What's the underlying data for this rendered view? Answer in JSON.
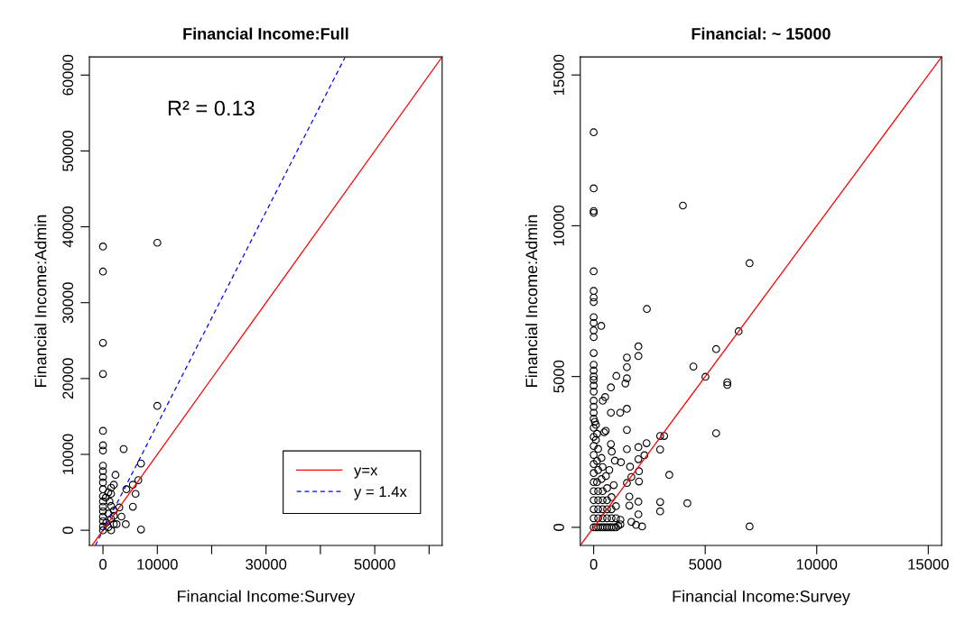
{
  "chart_data": [
    {
      "type": "scatter",
      "title": "Financial Income:Full",
      "xlabel": "Financial Income:Survey",
      "ylabel": "Financial Income:Admin",
      "annotations": [
        "R² = 0.13"
      ],
      "xlim": [
        -2500,
        62400
      ],
      "ylim": [
        -2000,
        62400
      ],
      "xticks": [
        0,
        10000,
        {
          "value": 20000,
          "label": null
        },
        30000,
        {
          "value": 40000,
          "label": null
        },
        50000,
        {
          "value": 60000,
          "label": null
        }
      ],
      "yticks": [
        0,
        10000,
        20000,
        30000,
        40000,
        50000,
        60000
      ],
      "grid": false,
      "legend": "bottom right",
      "series": [
        {
          "type": "scatter",
          "color": "#000000",
          "marker": "circle",
          "x": [
            0,
            10000,
            0,
            0,
            0,
            10000,
            0,
            0,
            0,
            3800,
            0,
            7000,
            0,
            0,
            2300,
            0,
            6500,
            5500,
            4300,
            6000,
            5500,
            3000,
            3400,
            4200,
            7000,
            2000,
            1500,
            1000,
            0,
            1500,
            0,
            500,
            0,
            1200,
            0,
            1500,
            2000,
            0,
            1000,
            0,
            2000,
            1500,
            0,
            600,
            2000,
            0,
            1000,
            0,
            1500,
            2500
          ],
          "values": [
            37400,
            37900,
            34100,
            24700,
            20600,
            16400,
            13100,
            11200,
            10500,
            10700,
            8500,
            8800,
            7800,
            7000,
            7300,
            6300,
            6600,
            6000,
            5400,
            4800,
            3100,
            3000,
            1800,
            800,
            100,
            6000,
            5600,
            5000,
            5400,
            4800,
            4500,
            4300,
            3800,
            3800,
            3100,
            3200,
            2600,
            2500,
            2200,
            1800,
            1900,
            1500,
            1200,
            1000,
            800,
            500,
            400,
            0,
            0,
            800
          ]
        },
        {
          "type": "line",
          "name": "y=x",
          "color": "#ff0000",
          "line_style": "solid",
          "x": [
            -2000,
            62400
          ],
          "values": [
            -2000,
            62400
          ]
        },
        {
          "type": "line",
          "name": "y = 1.4x",
          "color": "#0000ff",
          "line_style": "dashed",
          "x": [
            -1400,
            44500
          ],
          "values": [
            -2000,
            62300
          ]
        }
      ]
    },
    {
      "type": "scatter",
      "title": "Financial: ~ 15000",
      "xlabel": "Financial Income:Survey",
      "ylabel": "Financial Income:Admin",
      "xlim": [
        -600,
        15600
      ],
      "ylim": [
        -600,
        15600
      ],
      "xticks": [
        0,
        5000,
        10000,
        15000
      ],
      "yticks": [
        0,
        5000,
        10000,
        15000
      ],
      "grid": false,
      "series": [
        {
          "type": "scatter",
          "color": "#000000",
          "marker": "circle",
          "x": [
            0,
            0,
            0,
            4000,
            0,
            6990,
            0,
            0,
            0,
            2385,
            0,
            0,
            340,
            0,
            0,
            6500,
            0,
            5490,
            2005,
            2005,
            1490,
            1490,
            4470,
            0,
            1016,
            1490,
            1420,
            5010,
            5990,
            5990,
            0,
            772,
            515,
            406,
            0,
            772,
            1190,
            1490,
            0,
            474,
            1490,
            5490,
            2980,
            3160,
            772,
            2370,
            1490,
            2005,
            2980,
            2005,
            2275,
            1220,
            3390,
            2030,
            1630,
            2030,
            1490,
            1690,
            4200,
            2980,
            2980,
            2005,
            2005,
            1600,
            1600,
            1690,
            2170,
            1900,
            6990,
            950,
            810,
            540,
            0,
            100,
            200,
            300,
            400,
            500,
            600,
            700,
            800,
            900,
            1000,
            1100,
            1200,
            0,
            200,
            400,
            600,
            800,
            1000,
            1200,
            0,
            200,
            400,
            600,
            800,
            1000,
            0,
            200,
            400,
            600,
            800,
            0,
            200,
            400,
            600,
            900,
            0,
            150,
            350,
            550,
            0,
            200,
            400,
            700,
            0,
            150,
            350,
            0,
            200,
            0,
            100,
            0,
            150,
            0,
            100,
            0,
            0,
            50,
            0,
            0,
            0,
            0,
            0
          ],
          "values": [
            13100,
            11240,
            10490,
            10670,
            10430,
            8760,
            8490,
            7840,
            7620,
            7240,
            7470,
            6970,
            6680,
            6780,
            6530,
            6500,
            6310,
            5910,
            6000,
            5680,
            5630,
            5310,
            5330,
            5780,
            5020,
            4940,
            4770,
            4990,
            4810,
            4720,
            5390,
            4640,
            4320,
            4200,
            4890,
            3800,
            3800,
            3930,
            4000,
            3150,
            3230,
            3120,
            3030,
            3030,
            2760,
            2790,
            2590,
            2660,
            2580,
            2260,
            2390,
            2160,
            1740,
            1860,
            2010,
            1520,
            1470,
            1670,
            800,
            840,
            530,
            850,
            430,
            1020,
            720,
            180,
            30,
            80,
            30,
            2210,
            2510,
            3200,
            0,
            0,
            0,
            0,
            0,
            0,
            0,
            0,
            0,
            0,
            0,
            50,
            100,
            300,
            300,
            300,
            300,
            300,
            300,
            250,
            600,
            600,
            600,
            600,
            600,
            700,
            900,
            900,
            900,
            900,
            1000,
            1200,
            1200,
            1200,
            1300,
            1400,
            1500,
            1500,
            1600,
            1700,
            1800,
            1900,
            2000,
            1900,
            2100,
            2200,
            2300,
            2400,
            2600,
            2700,
            2900,
            3000,
            3100,
            3300,
            3400,
            3600,
            3800,
            3500,
            4200,
            4500,
            4700,
            5000,
            5200
          ]
        },
        {
          "type": "line",
          "color": "#ff0000",
          "line_style": "solid",
          "x": [
            -600,
            15600
          ],
          "values": [
            -600,
            15600
          ]
        }
      ]
    }
  ]
}
